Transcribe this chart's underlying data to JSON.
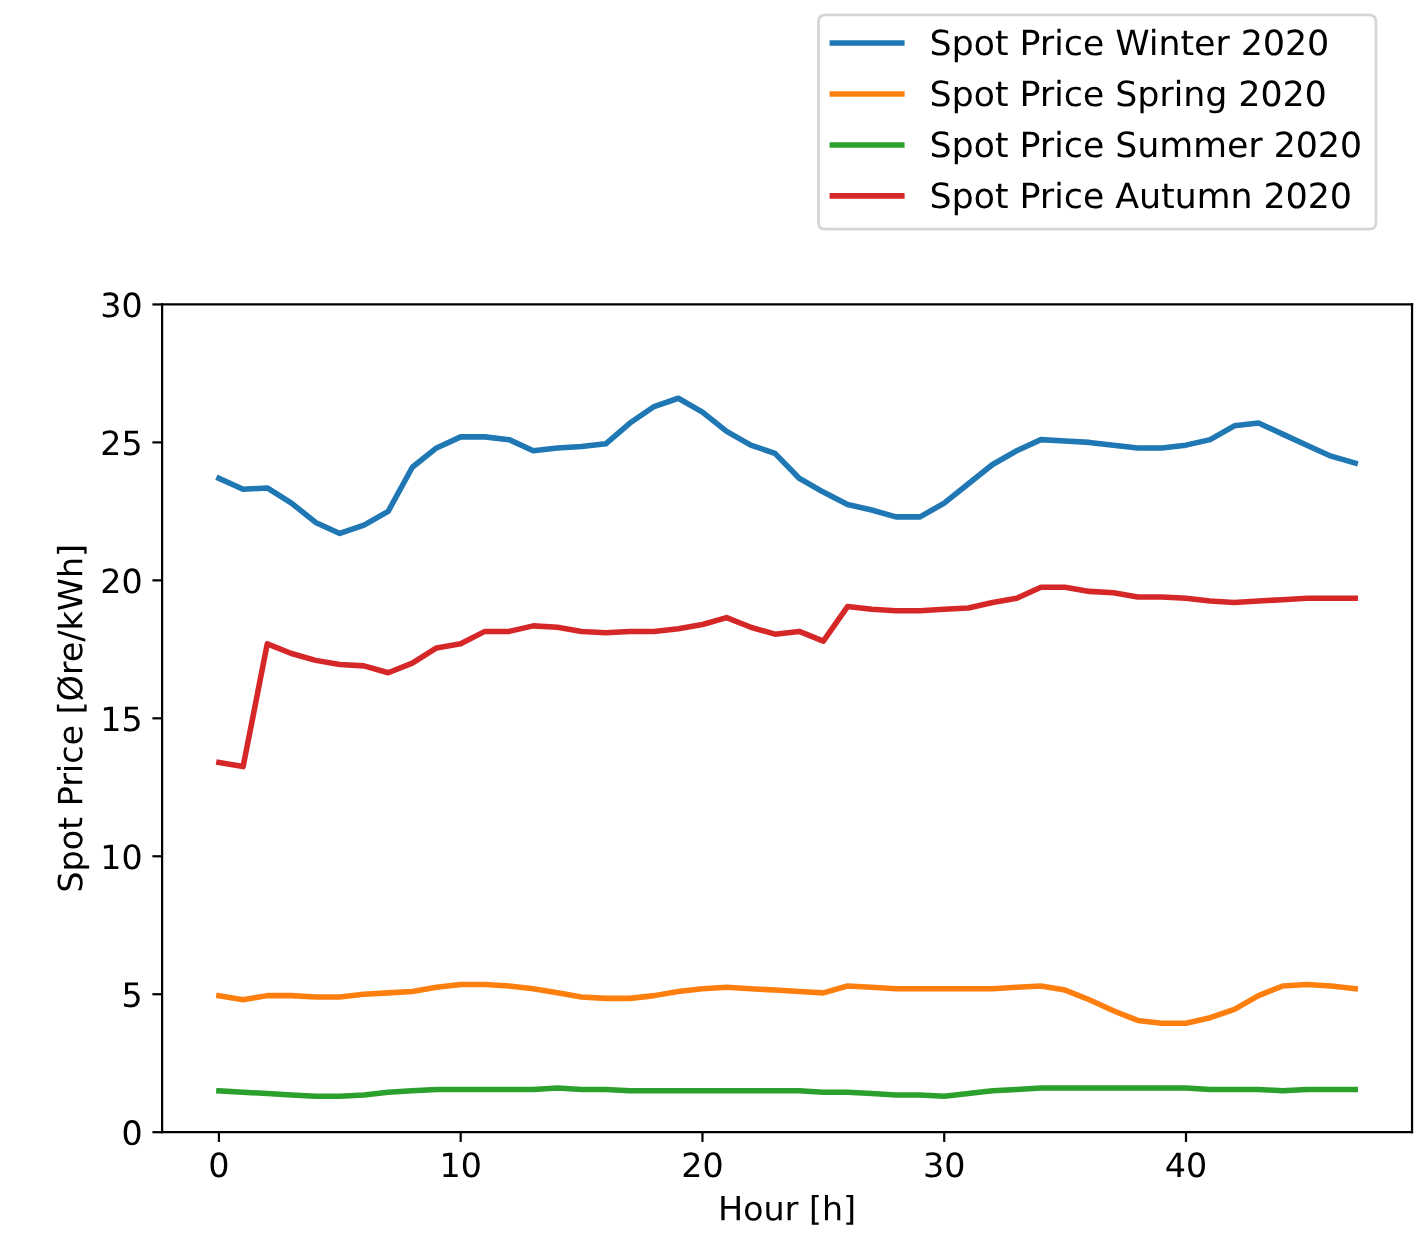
{
  "chart_data": {
    "type": "line",
    "xlabel": "Hour [h]",
    "ylabel": "Spot Price [Øre/kWh]",
    "x": [
      0,
      1,
      2,
      3,
      4,
      5,
      6,
      7,
      8,
      9,
      10,
      11,
      12,
      13,
      14,
      15,
      16,
      17,
      18,
      19,
      20,
      21,
      22,
      23,
      24,
      25,
      26,
      27,
      28,
      29,
      30,
      31,
      32,
      33,
      34,
      35,
      36,
      37,
      38,
      39,
      40,
      41,
      42,
      43,
      44,
      45,
      46,
      47
    ],
    "series": [
      {
        "name": "Spot Price Winter 2020",
        "color": "#1f77b4",
        "values": [
          23.7,
          23.3,
          23.35,
          22.8,
          22.1,
          21.7,
          22.0,
          22.5,
          24.1,
          24.8,
          25.2,
          25.2,
          25.1,
          24.7,
          24.8,
          24.85,
          24.95,
          25.7,
          26.3,
          26.6,
          26.1,
          25.4,
          24.9,
          24.6,
          23.7,
          23.2,
          22.75,
          22.55,
          22.3,
          22.3,
          22.8,
          23.5,
          24.2,
          24.7,
          25.1,
          25.05,
          25.0,
          24.9,
          24.8,
          24.8,
          24.9,
          25.1,
          25.6,
          25.7,
          25.3,
          24.9,
          24.5,
          24.25
        ]
      },
      {
        "name": "Spot Price Spring 2020",
        "color": "#ff7f0e",
        "values": [
          4.95,
          4.8,
          4.95,
          4.95,
          4.9,
          4.9,
          5.0,
          5.05,
          5.1,
          5.25,
          5.35,
          5.35,
          5.3,
          5.2,
          5.05,
          4.9,
          4.85,
          4.85,
          4.95,
          5.1,
          5.2,
          5.25,
          5.2,
          5.15,
          5.1,
          5.05,
          5.3,
          5.25,
          5.2,
          5.2,
          5.2,
          5.2,
          5.2,
          5.25,
          5.3,
          5.15,
          4.8,
          4.4,
          4.05,
          3.95,
          3.95,
          4.15,
          4.45,
          4.95,
          5.3,
          5.35,
          5.3,
          5.2
        ]
      },
      {
        "name": "Spot Price Summer 2020",
        "color": "#2ca02c",
        "values": [
          1.5,
          1.45,
          1.4,
          1.35,
          1.3,
          1.3,
          1.35,
          1.45,
          1.5,
          1.55,
          1.55,
          1.55,
          1.55,
          1.55,
          1.6,
          1.55,
          1.55,
          1.5,
          1.5,
          1.5,
          1.5,
          1.5,
          1.5,
          1.5,
          1.5,
          1.45,
          1.45,
          1.4,
          1.35,
          1.35,
          1.3,
          1.4,
          1.5,
          1.55,
          1.6,
          1.6,
          1.6,
          1.6,
          1.6,
          1.6,
          1.6,
          1.55,
          1.55,
          1.55,
          1.5,
          1.55,
          1.55,
          1.55
        ]
      },
      {
        "name": "Spot Price Autumn 2020",
        "color": "#d62728",
        "values": [
          13.4,
          13.25,
          17.7,
          17.35,
          17.1,
          16.95,
          16.9,
          16.65,
          17.0,
          17.55,
          17.7,
          18.15,
          18.15,
          18.35,
          18.3,
          18.15,
          18.1,
          18.15,
          18.15,
          18.25,
          18.4,
          18.65,
          18.3,
          18.05,
          18.15,
          17.8,
          19.05,
          18.95,
          18.9,
          18.9,
          18.95,
          19.0,
          19.2,
          19.35,
          19.75,
          19.75,
          19.6,
          19.55,
          19.4,
          19.4,
          19.35,
          19.25,
          19.2,
          19.25,
          19.3,
          19.35,
          19.35,
          19.35
        ]
      }
    ],
    "xlim": [
      -2.35,
      49.35
    ],
    "xticks": [
      0,
      10,
      20,
      30,
      40
    ],
    "ylim": [
      0,
      30
    ],
    "yticks": [
      0,
      5,
      10,
      15,
      20,
      25,
      30
    ],
    "legend": "top right",
    "grid": false,
    "marker": "none",
    "line_style": "solid"
  }
}
